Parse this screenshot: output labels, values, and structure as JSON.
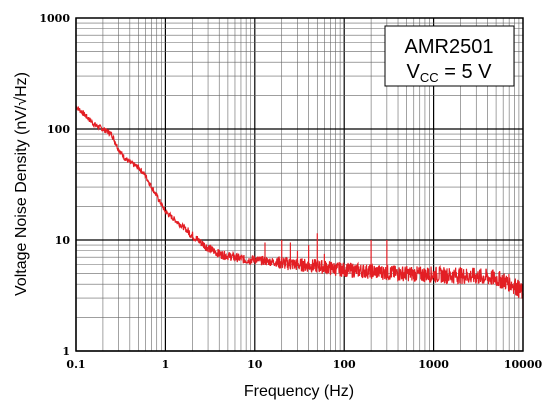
{
  "chart_data": {
    "type": "line",
    "xlabel": "Frequency (Hz)",
    "ylabel": "Voltage Noise Density (nV/√Hz)",
    "xscale": "log",
    "yscale": "log",
    "xlim": [
      0.1,
      10000
    ],
    "ylim": [
      1,
      1000
    ],
    "grid": true,
    "x_tick_labels": [
      "0.1",
      "1",
      "10",
      "100",
      "1000",
      "10000"
    ],
    "y_tick_labels": [
      "1",
      "10",
      "100",
      "1000"
    ],
    "annotation": {
      "line1": "AMR2501",
      "line2_main": "V",
      "line2_sub": "CC",
      "line2_rest": " = 5 V"
    },
    "series": [
      {
        "color": "#e31e24",
        "x": [
          0.1,
          0.13,
          0.16,
          0.2,
          0.25,
          0.3,
          0.35,
          0.4,
          0.5,
          0.6,
          0.7,
          0.8,
          1.0,
          1.3,
          1.6,
          2.0,
          2.5,
          3.0,
          4.0,
          5.0,
          6.0,
          7.0,
          8.0,
          10,
          12,
          15,
          20,
          25,
          30,
          40,
          50,
          60,
          70,
          80,
          100,
          150,
          200,
          300,
          400,
          500,
          700,
          1000,
          1500,
          2000,
          3000,
          4000,
          5000,
          6000,
          7000,
          8000,
          9000,
          10000
        ],
        "y": [
          160,
          130,
          110,
          100,
          90,
          65,
          55,
          50,
          45,
          38,
          30,
          25,
          18,
          15,
          13,
          11,
          9.5,
          8.5,
          7.5,
          7.2,
          7.0,
          6.8,
          6.6,
          6.7,
          6.5,
          6.4,
          6.2,
          6.1,
          6.0,
          5.9,
          5.8,
          5.7,
          5.6,
          5.5,
          5.4,
          5.3,
          5.2,
          5.1,
          5.0,
          5.0,
          4.9,
          4.9,
          4.8,
          4.8,
          4.7,
          4.6,
          4.5,
          4.3,
          4.1,
          3.9,
          3.6,
          3.3
        ]
      }
    ],
    "spikes": [
      {
        "x": 13,
        "y": 9.5
      },
      {
        "x": 20,
        "y": 10
      },
      {
        "x": 25,
        "y": 9.5
      },
      {
        "x": 30,
        "y": 8
      },
      {
        "x": 40,
        "y": 9
      },
      {
        "x": 50,
        "y": 11.5
      },
      {
        "x": 60,
        "y": 7.5
      },
      {
        "x": 200,
        "y": 10
      },
      {
        "x": 300,
        "y": 10
      },
      {
        "x": 10000,
        "y": 2
      }
    ]
  }
}
